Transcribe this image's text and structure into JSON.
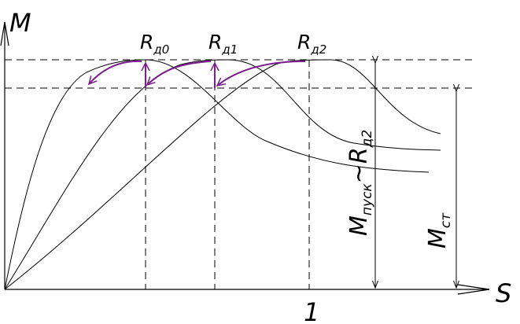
{
  "axes": {
    "y_label": "M",
    "x_label": "S",
    "x_tick": "1"
  },
  "resistor_labels": [
    {
      "main": "R",
      "sub": "д0"
    },
    {
      "main": "R",
      "sub": "д1"
    },
    {
      "main": "R",
      "sub": "д2"
    }
  ],
  "dim_left": {
    "main": "M",
    "sub": "пуск",
    "tail": "~R",
    "tail_sub": "д2"
  },
  "dim_right": {
    "main": "M",
    "sub": "ст"
  },
  "colors": {
    "switching_curves": "#7a1f8c",
    "lines": "#000000"
  }
}
